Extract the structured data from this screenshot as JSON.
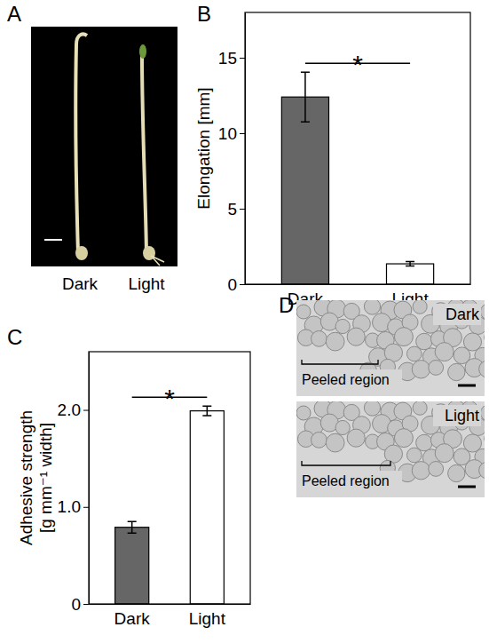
{
  "panel_labels": [
    "A",
    "B",
    "C",
    "D"
  ],
  "photo": {
    "labels": [
      "Dark",
      "Light"
    ]
  },
  "micrographs": {
    "labels": [
      "Dark",
      "Light"
    ],
    "annotation": "Peeled region"
  },
  "chart_data": [
    {
      "type": "bar",
      "categories": [
        "Dark",
        "Light"
      ],
      "values": [
        12.4,
        1.35
      ],
      "errors": [
        1.65,
        0.15
      ],
      "colors": [
        "#666666",
        "#ffffff"
      ],
      "y_label": "Elongation [mm]",
      "ylim": [
        0,
        18
      ],
      "yticks": [
        0,
        5,
        10,
        15
      ],
      "annotations": [
        "*"
      ]
    },
    {
      "type": "bar",
      "categories": [
        "Dark",
        "Light"
      ],
      "values": [
        0.79,
        1.99
      ],
      "errors": [
        0.06,
        0.05
      ],
      "colors": [
        "#666666",
        "#ffffff"
      ],
      "y_label": "Adhesive strength [g mm⁻¹ width]",
      "ylim": [
        0,
        2.6
      ],
      "yticks": [
        0,
        {
          "value": 1,
          "label": "1.0"
        },
        {
          "value": 2,
          "label": "2.0"
        }
      ],
      "annotations": [
        "*"
      ]
    }
  ]
}
